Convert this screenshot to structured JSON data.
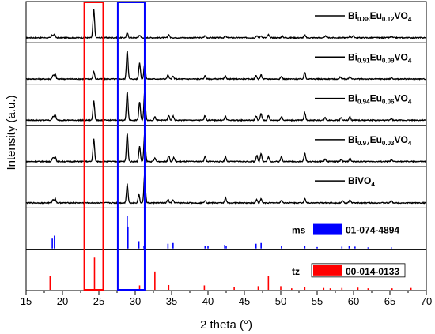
{
  "chart_data": {
    "type": "line",
    "xlabel": "2 theta (°)",
    "ylabel": "Intensity (a.u.)",
    "xlim": [
      15,
      70
    ],
    "xticks": [
      "15",
      "20",
      "25",
      "30",
      "35",
      "40",
      "45",
      "50",
      "55",
      "60",
      "65",
      "70"
    ],
    "panels": [
      {
        "name_parts": [
          [
            "Bi",
            false
          ],
          [
            "0.88",
            true
          ],
          [
            "Eu",
            false
          ],
          [
            "0.12",
            true
          ],
          [
            "VO",
            false
          ],
          [
            "4",
            true
          ]
        ],
        "baseline": 0.06,
        "noise": 0.03,
        "peaks": [
          [
            18.6,
            0.08
          ],
          [
            18.9,
            0.1
          ],
          [
            24.3,
            0.85
          ],
          [
            28.9,
            0.14
          ],
          [
            30.6,
            0.08
          ],
          [
            34.6,
            0.1
          ],
          [
            39.6,
            0.06
          ],
          [
            42.4,
            0.05
          ],
          [
            46.7,
            0.06
          ],
          [
            47.3,
            0.06
          ],
          [
            48.3,
            0.09
          ],
          [
            50.2,
            0.05
          ],
          [
            53.3,
            0.08
          ],
          [
            56.2,
            0.05
          ],
          [
            59.5,
            0.05
          ],
          [
            60.0,
            0.05
          ],
          [
            65.2,
            0.04
          ]
        ]
      },
      {
        "name_parts": [
          [
            "Bi",
            false
          ],
          [
            "0.91",
            true
          ],
          [
            "Eu",
            false
          ],
          [
            "0.09",
            true
          ],
          [
            "VO",
            false
          ],
          [
            "4",
            true
          ]
        ],
        "baseline": 0.06,
        "noise": 0.03,
        "peaks": [
          [
            18.7,
            0.12
          ],
          [
            19.0,
            0.14
          ],
          [
            24.3,
            0.22
          ],
          [
            28.9,
            0.85
          ],
          [
            30.6,
            0.48
          ],
          [
            31.3,
            0.45
          ],
          [
            34.5,
            0.12
          ],
          [
            35.2,
            0.08
          ],
          [
            39.6,
            0.1
          ],
          [
            42.4,
            0.09
          ],
          [
            46.6,
            0.1
          ],
          [
            47.3,
            0.12
          ],
          [
            50.1,
            0.08
          ],
          [
            53.3,
            0.2
          ],
          [
            58.2,
            0.06
          ],
          [
            59.5,
            0.08
          ],
          [
            65.2,
            0.04
          ]
        ]
      },
      {
        "name_parts": [
          [
            "Bi",
            false
          ],
          [
            "0.94",
            true
          ],
          [
            "Eu",
            false
          ],
          [
            "0.06",
            true
          ],
          [
            "VO",
            false
          ],
          [
            "4",
            true
          ]
        ],
        "baseline": 0.06,
        "noise": 0.03,
        "peaks": [
          [
            18.7,
            0.12
          ],
          [
            19.0,
            0.16
          ],
          [
            24.3,
            0.6
          ],
          [
            28.9,
            0.85
          ],
          [
            30.6,
            0.55
          ],
          [
            31.3,
            0.85
          ],
          [
            32.7,
            0.1
          ],
          [
            34.6,
            0.14
          ],
          [
            35.2,
            0.12
          ],
          [
            39.6,
            0.14
          ],
          [
            42.4,
            0.12
          ],
          [
            46.6,
            0.13
          ],
          [
            47.3,
            0.2
          ],
          [
            48.3,
            0.14
          ],
          [
            50.1,
            0.12
          ],
          [
            53.3,
            0.22
          ],
          [
            56.1,
            0.08
          ],
          [
            58.3,
            0.08
          ],
          [
            59.5,
            0.1
          ],
          [
            65.2,
            0.05
          ]
        ]
      },
      {
        "name_parts": [
          [
            "Bi",
            false
          ],
          [
            "0.97",
            true
          ],
          [
            "Eu",
            false
          ],
          [
            "0.03",
            true
          ],
          [
            "VO",
            false
          ],
          [
            "4",
            true
          ]
        ],
        "baseline": 0.06,
        "noise": 0.03,
        "peaks": [
          [
            18.7,
            0.12
          ],
          [
            19.0,
            0.15
          ],
          [
            24.3,
            0.68
          ],
          [
            28.9,
            0.85
          ],
          [
            30.6,
            0.45
          ],
          [
            31.3,
            0.85
          ],
          [
            32.7,
            0.1
          ],
          [
            34.6,
            0.18
          ],
          [
            35.3,
            0.12
          ],
          [
            39.6,
            0.16
          ],
          [
            42.4,
            0.14
          ],
          [
            46.7,
            0.18
          ],
          [
            47.3,
            0.25
          ],
          [
            48.3,
            0.14
          ],
          [
            50.1,
            0.15
          ],
          [
            53.3,
            0.25
          ],
          [
            56.1,
            0.07
          ],
          [
            58.3,
            0.07
          ],
          [
            59.5,
            0.1
          ],
          [
            65.2,
            0.05
          ]
        ]
      },
      {
        "name_parts": [
          [
            "BiVO",
            false
          ],
          [
            "4",
            true
          ]
        ],
        "baseline": 0.06,
        "noise": 0.03,
        "peaks": [
          [
            18.7,
            0.1
          ],
          [
            19.0,
            0.12
          ],
          [
            28.9,
            0.55
          ],
          [
            30.5,
            0.25
          ],
          [
            31.3,
            0.85
          ],
          [
            34.5,
            0.1
          ],
          [
            35.2,
            0.08
          ],
          [
            39.6,
            0.08
          ],
          [
            42.4,
            0.15
          ],
          [
            46.7,
            0.1
          ],
          [
            47.3,
            0.12
          ],
          [
            50.1,
            0.08
          ],
          [
            53.3,
            0.14
          ],
          [
            58.5,
            0.06
          ],
          [
            59.5,
            0.08
          ],
          [
            65.2,
            0.06
          ]
        ]
      }
    ],
    "references": [
      {
        "label": "ms",
        "card": "01-074-4894",
        "color": "#0000ff",
        "lines": [
          [
            18.6,
            0.27
          ],
          [
            18.9,
            0.35
          ],
          [
            28.9,
            0.88
          ],
          [
            29.0,
            0.6
          ],
          [
            30.5,
            0.2
          ],
          [
            31.2,
            0.08
          ],
          [
            34.5,
            0.13
          ],
          [
            35.2,
            0.15
          ],
          [
            39.6,
            0.08
          ],
          [
            40.0,
            0.06
          ],
          [
            42.3,
            0.1
          ],
          [
            42.5,
            0.06
          ],
          [
            46.6,
            0.13
          ],
          [
            47.3,
            0.15
          ],
          [
            50.1,
            0.06
          ],
          [
            53.3,
            0.08
          ],
          [
            55.0,
            0.04
          ],
          [
            58.4,
            0.05
          ],
          [
            59.4,
            0.06
          ],
          [
            60.2,
            0.05
          ],
          [
            62.0,
            0.03
          ],
          [
            65.2,
            0.03
          ]
        ]
      },
      {
        "label": "tz",
        "card": "00-014-0133",
        "color": "#ff0000",
        "lines": [
          [
            18.3,
            0.38
          ],
          [
            24.4,
            0.88
          ],
          [
            30.6,
            0.12
          ],
          [
            32.7,
            0.5
          ],
          [
            34.6,
            0.13
          ],
          [
            39.5,
            0.12
          ],
          [
            43.6,
            0.08
          ],
          [
            46.9,
            0.1
          ],
          [
            48.3,
            0.38
          ],
          [
            50.0,
            0.1
          ],
          [
            51.5,
            0.04
          ],
          [
            53.3,
            0.08
          ],
          [
            55.9,
            0.05
          ],
          [
            56.8,
            0.04
          ],
          [
            58.4,
            0.05
          ],
          [
            60.6,
            0.06
          ],
          [
            62.0,
            0.04
          ],
          [
            65.3,
            0.04
          ],
          [
            67.9,
            0.05
          ]
        ]
      }
    ],
    "highlights": [
      {
        "range": [
          23.0,
          25.6
        ],
        "color": "#ff0000"
      },
      {
        "range": [
          27.6,
          31.3
        ],
        "color": "#0000ff"
      }
    ]
  }
}
